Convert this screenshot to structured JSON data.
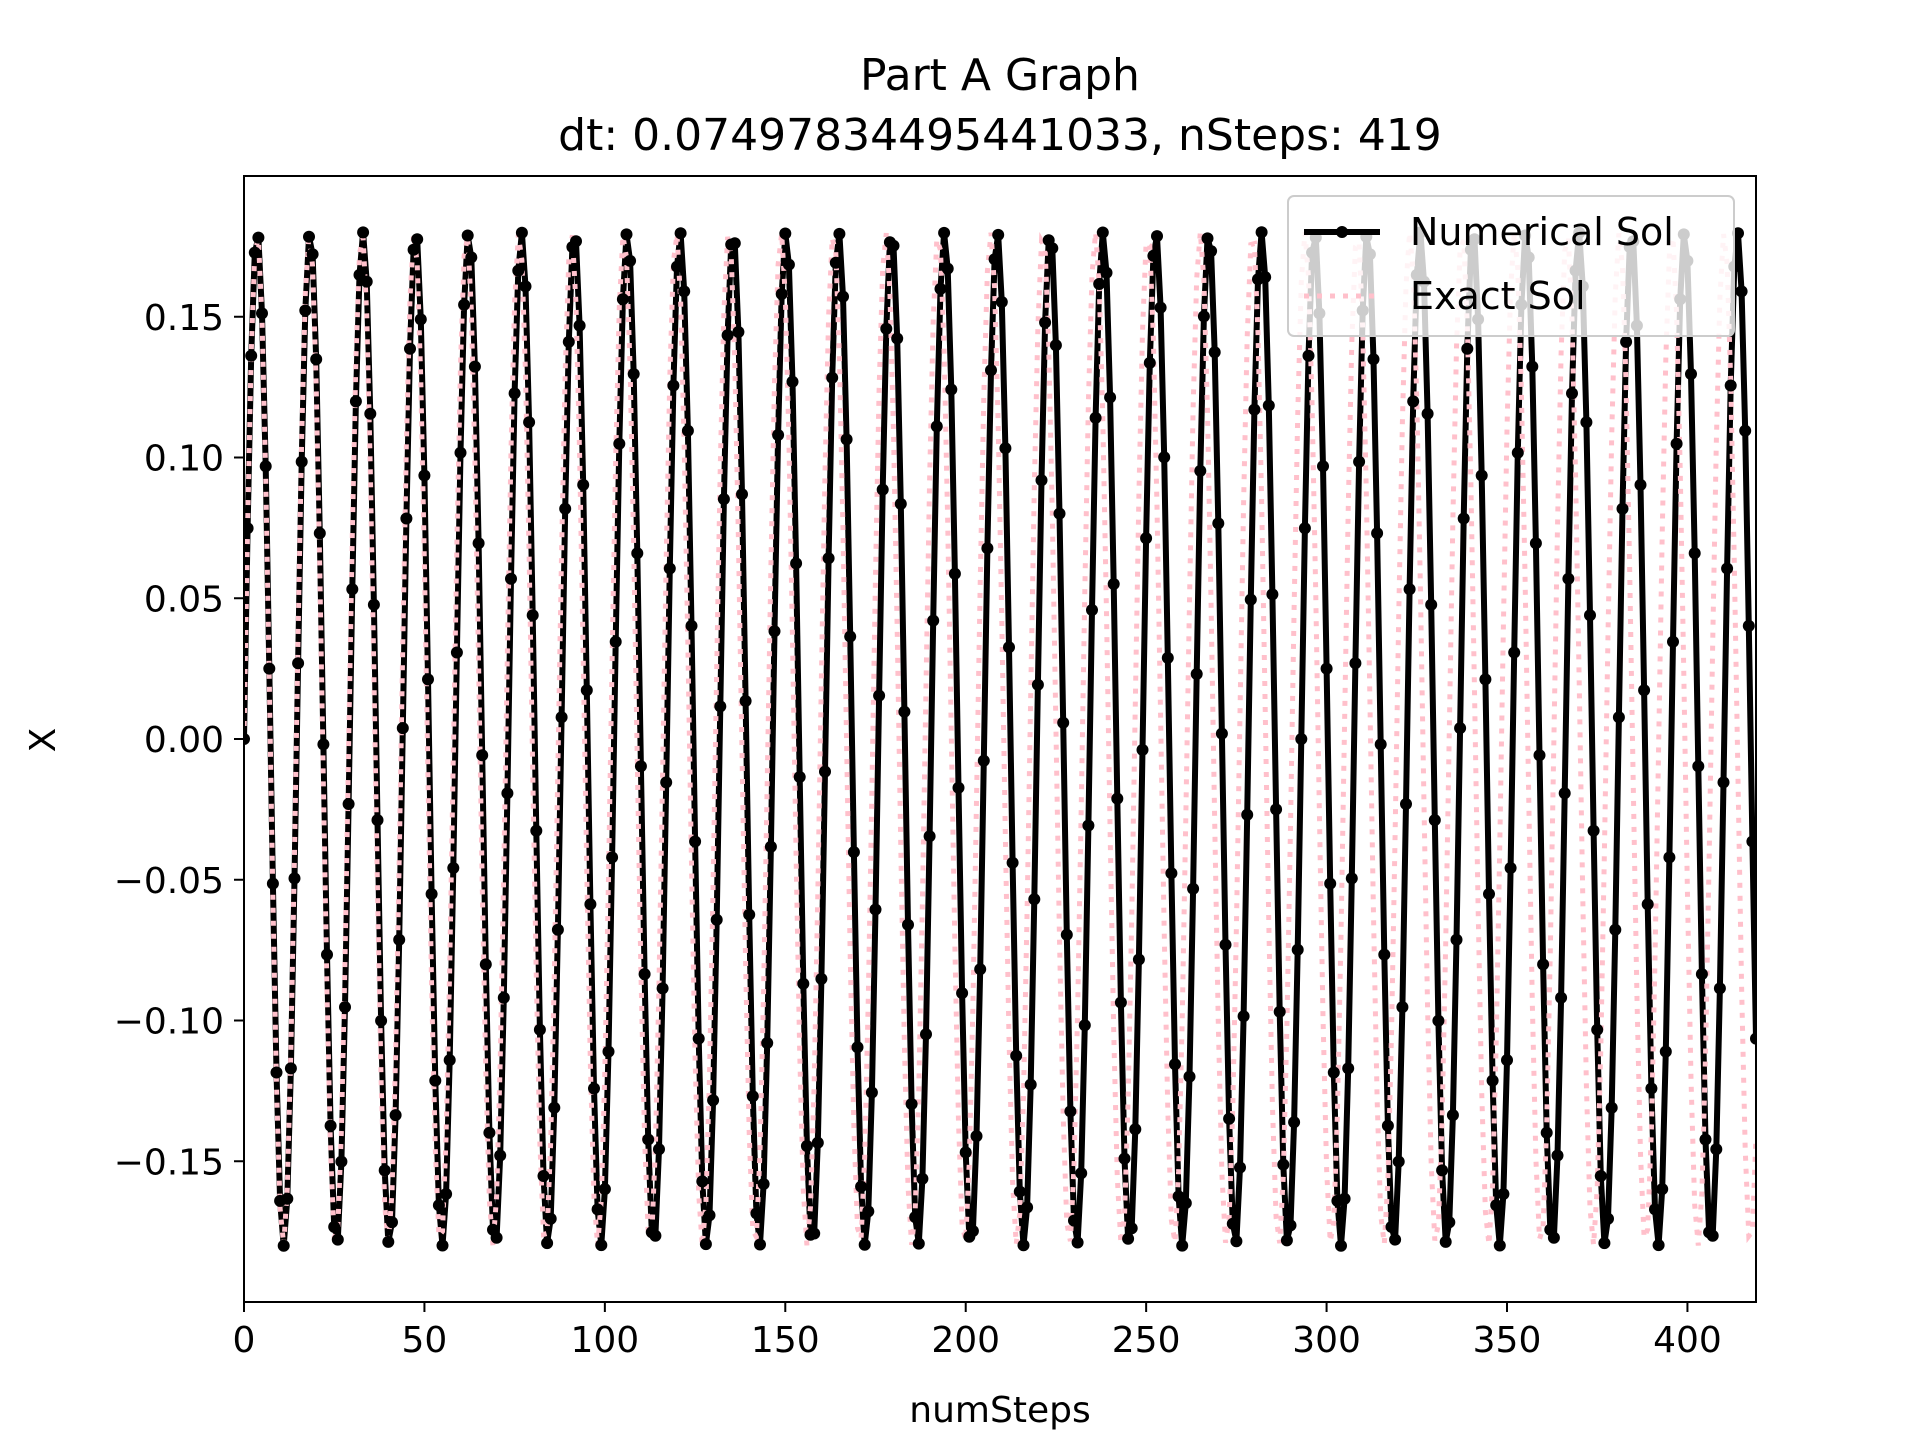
{
  "chart_data": {
    "type": "line",
    "title": "Part A Graph",
    "subtitle": "dt: 0.07497834495441033, nSteps: 419",
    "xlabel": "numSteps",
    "ylabel": "X",
    "xlim": [
      0,
      419
    ],
    "ylim": [
      -0.2,
      0.2
    ],
    "x_ticks": [
      0,
      50,
      100,
      150,
      200,
      250,
      300,
      350,
      400
    ],
    "x_tick_labels": [
      "0",
      "50",
      "100",
      "150",
      "200",
      "250",
      "300",
      "350",
      "400"
    ],
    "y_ticks": [
      -0.15,
      -0.1,
      -0.05,
      0.0,
      0.05,
      0.1,
      0.15
    ],
    "y_tick_labels": [
      "−0.15",
      "−0.10",
      "−0.05",
      "0.00",
      "0.05",
      "0.10",
      "0.15"
    ],
    "grid": false,
    "legend_position": "top-right",
    "series": [
      {
        "name": "Numerical Sol",
        "style": "solid-with-dots",
        "color": "#000000",
        "amplitude": 0.18,
        "period_steps": 14.65,
        "n_points": 420
      },
      {
        "name": "Exact Sol",
        "style": "dotted",
        "color": "#ffc0cb",
        "amplitude": 0.18,
        "period_steps": 14.52,
        "n_points": 420
      }
    ]
  }
}
